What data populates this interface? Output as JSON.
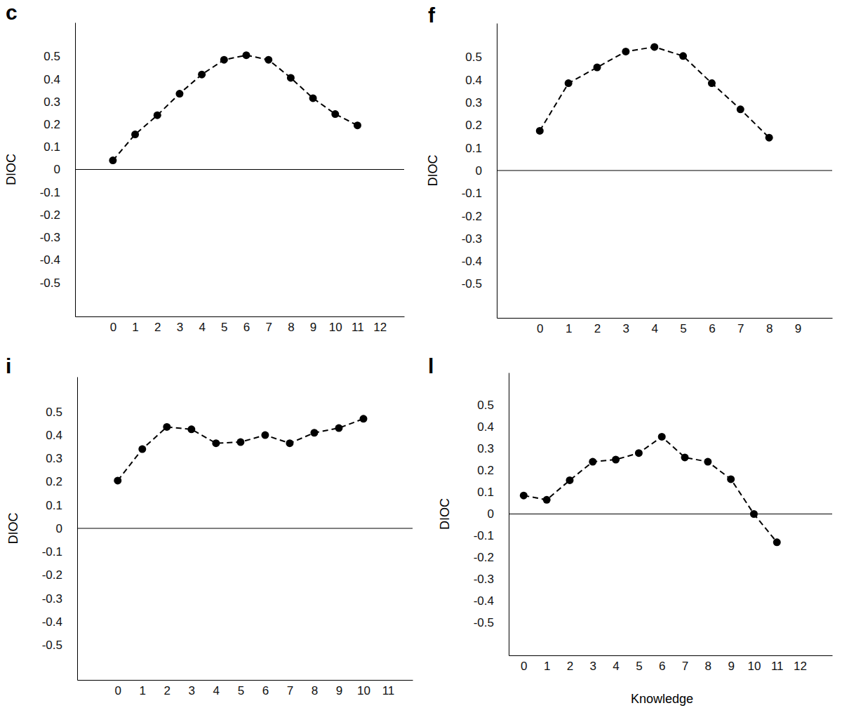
{
  "chart_data": [
    {
      "type": "line",
      "title": "c",
      "y_label": "DIOC",
      "x": [
        0,
        1,
        2,
        3,
        4,
        5,
        6,
        7,
        8,
        9,
        10,
        11
      ],
      "series": [
        {
          "color": "#000000",
          "marker": "circle",
          "line_style": "dashed",
          "values": [
            0.04,
            0.155,
            0.24,
            0.335,
            0.42,
            0.485,
            0.505,
            0.485,
            0.405,
            0.315,
            0.245,
            0.195
          ]
        }
      ],
      "xlim": [
        -1.7,
        13.1
      ],
      "xticks": [
        0,
        1,
        2,
        3,
        4,
        5,
        6,
        7,
        8,
        9,
        10,
        11,
        12
      ],
      "ylim": [
        -0.65,
        0.65
      ],
      "yticks": [
        -0.5,
        -0.4,
        -0.3,
        -0.2,
        -0.1,
        0,
        0.1,
        0.2,
        0.3,
        0.4,
        0.5
      ]
    },
    {
      "type": "line",
      "title": "f",
      "y_label": "DIOC",
      "x": [
        0,
        1,
        2,
        3,
        4,
        5,
        6,
        7,
        8
      ],
      "series": [
        {
          "color": "#000000",
          "marker": "circle",
          "line_style": "dashed",
          "values": [
            0.175,
            0.385,
            0.455,
            0.525,
            0.545,
            0.505,
            0.385,
            0.27,
            0.145
          ]
        }
      ],
      "xlim": [
        -1.5,
        10.2
      ],
      "xticks": [
        0,
        1,
        2,
        3,
        4,
        5,
        6,
        7,
        8,
        9
      ],
      "ylim": [
        -0.65,
        0.65
      ],
      "yticks": [
        -0.5,
        -0.4,
        -0.3,
        -0.2,
        -0.1,
        0,
        0.1,
        0.2,
        0.3,
        0.4,
        0.5
      ]
    },
    {
      "type": "line",
      "title": "i",
      "y_label": "DIOC",
      "x": [
        0,
        1,
        2,
        3,
        4,
        5,
        6,
        7,
        8,
        9,
        10
      ],
      "series": [
        {
          "color": "#000000",
          "marker": "circle",
          "line_style": "dashed",
          "values": [
            0.205,
            0.34,
            0.435,
            0.425,
            0.365,
            0.37,
            0.4,
            0.365,
            0.41,
            0.43,
            0.47
          ]
        }
      ],
      "xlim": [
        -1.65,
        12
      ],
      "xticks": [
        0,
        1,
        2,
        3,
        4,
        5,
        6,
        7,
        8,
        9,
        10,
        11
      ],
      "ylim": [
        -0.65,
        0.65
      ],
      "yticks": [
        -0.5,
        -0.4,
        -0.3,
        -0.2,
        -0.1,
        0,
        0.1,
        0.2,
        0.3,
        0.4,
        0.5
      ]
    },
    {
      "type": "line",
      "title": "l",
      "y_label": "DIOC",
      "x_label": "Knowledge",
      "x": [
        0,
        1,
        2,
        3,
        4,
        5,
        6,
        7,
        8,
        9,
        10,
        11
      ],
      "series": [
        {
          "color": "#000000",
          "marker": "circle",
          "line_style": "dashed",
          "values": [
            0.085,
            0.065,
            0.155,
            0.24,
            0.25,
            0.28,
            0.355,
            0.26,
            0.24,
            0.16,
            0.0,
            -0.13
          ]
        }
      ],
      "xlim": [
        -0.65,
        13.4
      ],
      "xticks": [
        0,
        1,
        2,
        3,
        4,
        5,
        6,
        7,
        8,
        9,
        10,
        11,
        12
      ],
      "ylim": [
        -0.65,
        0.65
      ],
      "yticks": [
        -0.5,
        -0.4,
        -0.3,
        -0.2,
        -0.1,
        0,
        0.1,
        0.2,
        0.3,
        0.4,
        0.5
      ]
    }
  ]
}
